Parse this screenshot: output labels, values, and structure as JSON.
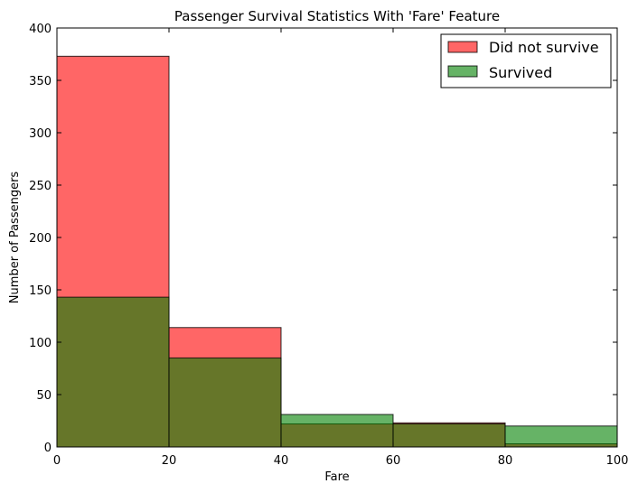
{
  "chart_data": {
    "type": "bar",
    "title": "Passenger Survival Statistics With 'Fare' Feature",
    "xlabel": "Fare",
    "ylabel": "Number of Passengers",
    "xlim": [
      0,
      100
    ],
    "ylim": [
      0,
      400
    ],
    "xticks": [
      0,
      20,
      40,
      60,
      80,
      100
    ],
    "yticks": [
      0,
      50,
      100,
      150,
      200,
      250,
      300,
      350,
      400
    ],
    "bins": [
      [
        0,
        20
      ],
      [
        20,
        40
      ],
      [
        40,
        60
      ],
      [
        60,
        80
      ],
      [
        80,
        100
      ]
    ],
    "series": [
      {
        "name": "Did not survive",
        "color": "#ff0000",
        "values": [
          373,
          114,
          22,
          23,
          3
        ]
      },
      {
        "name": "Survived",
        "color": "#008000",
        "values": [
          143,
          85,
          31,
          22,
          20
        ]
      }
    ],
    "legend_position": "top-right",
    "grid": false
  }
}
